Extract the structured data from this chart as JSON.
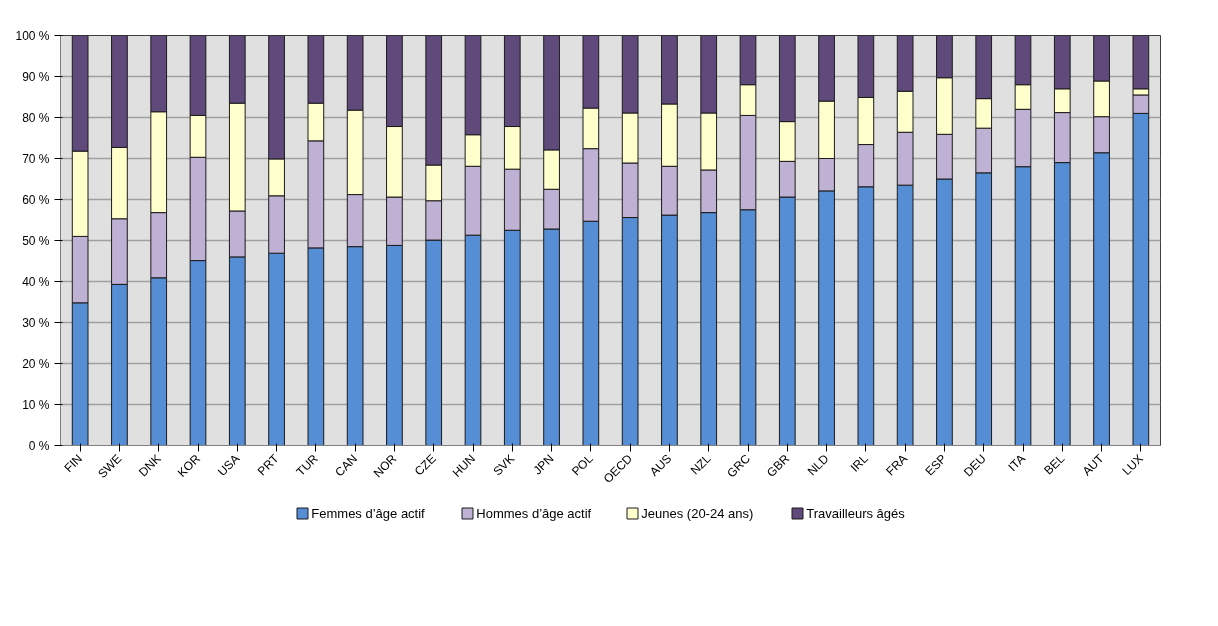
{
  "chart_data": {
    "type": "bar",
    "stacked": true,
    "categories": [
      "FIN",
      "SWE",
      "DNK",
      "KOR",
      "USA",
      "PRT",
      "TUR",
      "CAN",
      "NOR",
      "CZE",
      "HUN",
      "SVK",
      "JPN",
      "POL",
      "OECD",
      "AUS",
      "NZL",
      "GRC",
      "GBR",
      "NLD",
      "IRL",
      "FRA",
      "ESP",
      "DEU",
      "ITA",
      "BEL",
      "AUT",
      "LUX"
    ],
    "series": [
      {
        "name": "Femmes d’âge actif",
        "color": "#558ed5",
        "values": [
          34.8,
          39.3,
          40.9,
          45.1,
          46.0,
          46.9,
          48.2,
          48.5,
          48.8,
          50.1,
          51.3,
          52.5,
          52.8,
          54.7,
          55.6,
          56.2,
          56.8,
          57.5,
          60.6,
          62.1,
          63.1,
          63.5,
          65.0,
          66.5,
          68.0,
          69.0,
          71.4,
          81.0
        ]
      },
      {
        "name": "Hommes d’âge actif",
        "color": "#bfb1d3",
        "values": [
          16.2,
          16.0,
          15.9,
          25.2,
          11.2,
          14.0,
          26.1,
          12.7,
          11.8,
          9.6,
          16.8,
          14.9,
          9.7,
          17.7,
          13.3,
          11.9,
          10.4,
          23.0,
          8.7,
          7.9,
          10.3,
          12.9,
          10.9,
          10.9,
          14.0,
          12.2,
          8.8,
          4.5
        ]
      },
      {
        "name": "Jeunes (20-24  ans)",
        "color": "#ffffcc",
        "values": [
          20.8,
          17.4,
          24.6,
          10.2,
          26.3,
          9.0,
          9.2,
          20.6,
          17.2,
          8.7,
          7.7,
          10.4,
          9.6,
          9.9,
          12.2,
          15.2,
          13.9,
          7.5,
          9.7,
          14.0,
          11.5,
          10.0,
          13.8,
          7.2,
          6.0,
          5.8,
          8.7,
          1.5
        ]
      },
      {
        "name": "Travailleurs âgés",
        "color": "#604a7b",
        "values": [
          28.2,
          27.3,
          18.6,
          19.5,
          16.5,
          30.1,
          16.5,
          18.2,
          22.2,
          31.6,
          24.2,
          22.2,
          27.9,
          17.7,
          18.9,
          16.7,
          18.9,
          12.0,
          21.0,
          16.0,
          15.1,
          13.6,
          10.3,
          15.4,
          12.0,
          13.0,
          11.1,
          13.0
        ]
      }
    ],
    "ylim": [
      0,
      100
    ],
    "yticks": [
      {
        "value": 0,
        "label": "0 %"
      },
      {
        "value": 10,
        "label": "10 %"
      },
      {
        "value": 20,
        "label": "20 %"
      },
      {
        "value": 30,
        "label": "30 %"
      },
      {
        "value": 40,
        "label": "40 %"
      },
      {
        "value": 50,
        "label": "50 %"
      },
      {
        "value": 60,
        "label": "60 %"
      },
      {
        "value": 70,
        "label": "70 %"
      },
      {
        "value": 80,
        "label": "80 %"
      },
      {
        "value": 90,
        "label": "90 %"
      },
      {
        "value": 100,
        "label": "100 %"
      }
    ],
    "grid": "y",
    "legend": "bottom"
  }
}
